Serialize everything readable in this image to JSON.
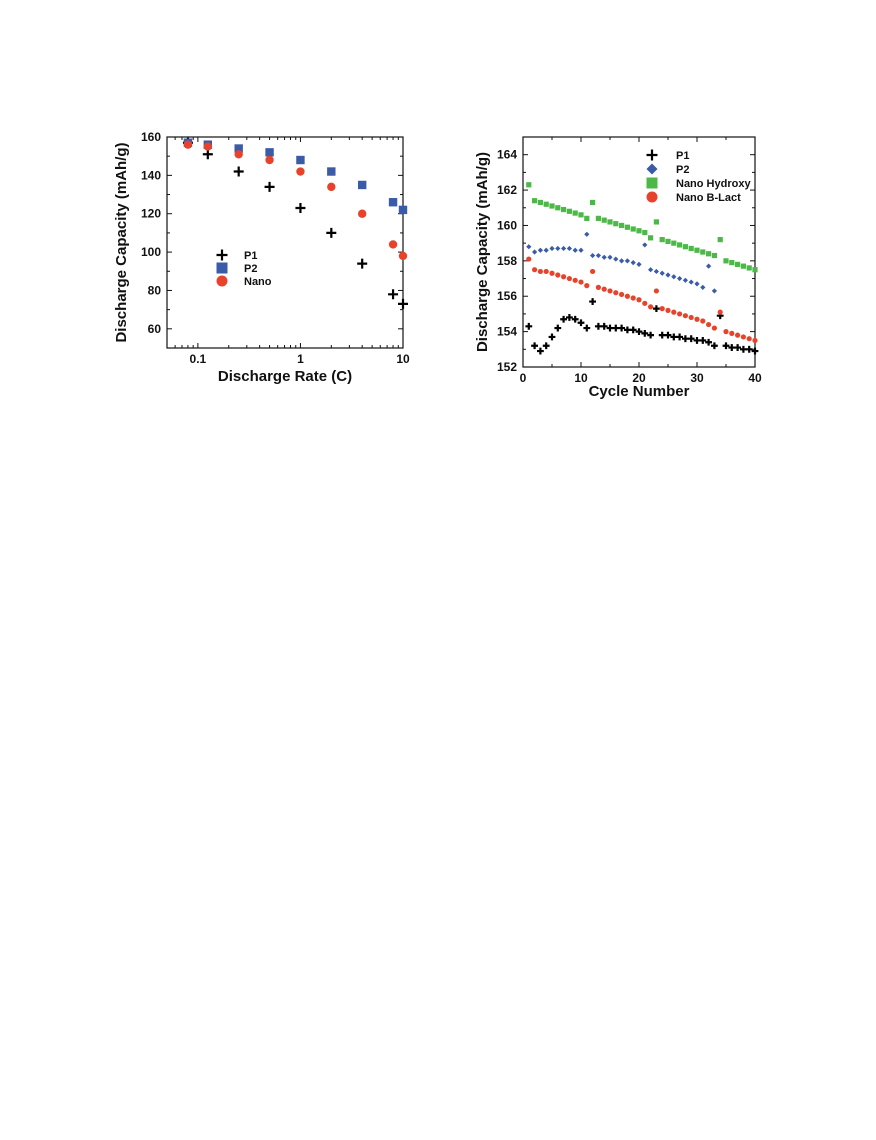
{
  "chart_data": [
    {
      "type": "scatter",
      "xlabel": "Discharge Rate (C)",
      "ylabel": "Discharge Capacity (mAh/g)",
      "x_scale": "log",
      "xlim": [
        0.05,
        10
      ],
      "ylim": [
        50,
        160
      ],
      "x_ticks": [
        0.1,
        1,
        10
      ],
      "x_tick_labels": [
        "0.1",
        "1",
        "10"
      ],
      "y_ticks": [
        60,
        80,
        100,
        120,
        140,
        160
      ],
      "legend_position": "left-center",
      "grid": false,
      "series": [
        {
          "name": "P1",
          "marker": "plus",
          "color": "#000000",
          "x": [
            0.08,
            0.125,
            0.25,
            0.5,
            1,
            2,
            4,
            8,
            10
          ],
          "y": [
            157,
            151,
            142,
            134,
            123,
            110,
            94,
            78,
            73
          ]
        },
        {
          "name": "P2",
          "marker": "square",
          "color": "#3a5ba8",
          "x": [
            0.08,
            0.125,
            0.25,
            0.5,
            1,
            2,
            4,
            8,
            10
          ],
          "y": [
            157,
            156,
            154,
            152,
            148,
            142,
            135,
            126,
            122
          ]
        },
        {
          "name": "Nano",
          "marker": "circle",
          "color": "#e8432a",
          "x": [
            0.08,
            0.125,
            0.25,
            0.5,
            1,
            2,
            4,
            8,
            10
          ],
          "y": [
            156,
            155,
            151,
            148,
            142,
            134,
            120,
            104,
            98
          ]
        }
      ]
    },
    {
      "type": "scatter",
      "xlabel": "Cycle Number",
      "ylabel": "Discharge Capacity (mAh/g)",
      "xlim": [
        0,
        40
      ],
      "ylim": [
        152,
        165
      ],
      "x_ticks": [
        0,
        10,
        20,
        30,
        40
      ],
      "y_ticks": [
        152,
        154,
        156,
        158,
        160,
        162,
        164
      ],
      "legend_position": "top-center",
      "grid": false,
      "series": [
        {
          "name": "P1",
          "marker": "plus",
          "color": "#000000",
          "x": [
            1,
            2,
            3,
            4,
            5,
            6,
            7,
            8,
            9,
            10,
            11,
            12,
            13,
            14,
            15,
            16,
            17,
            18,
            19,
            20,
            21,
            22,
            23,
            24,
            25,
            26,
            27,
            28,
            29,
            30,
            31,
            32,
            33,
            34,
            35,
            36,
            37,
            38,
            39,
            40
          ],
          "y": [
            154.3,
            153.2,
            152.9,
            153.2,
            153.7,
            154.2,
            154.7,
            154.8,
            154.7,
            154.5,
            154.2,
            155.7,
            154.3,
            154.3,
            154.2,
            154.2,
            154.2,
            154.1,
            154.1,
            154.0,
            153.9,
            153.8,
            155.3,
            153.8,
            153.8,
            153.7,
            153.7,
            153.6,
            153.6,
            153.5,
            153.5,
            153.4,
            153.2,
            154.9,
            153.2,
            153.1,
            153.1,
            153.0,
            153.0,
            152.9
          ]
        },
        {
          "name": "P2",
          "marker": "diamond",
          "color": "#3a5ba8",
          "x": [
            1,
            2,
            3,
            4,
            5,
            6,
            7,
            8,
            9,
            10,
            11,
            12,
            13,
            14,
            15,
            16,
            17,
            18,
            19,
            20,
            21,
            22,
            23,
            24,
            25,
            26,
            27,
            28,
            29,
            30,
            31,
            32,
            33
          ],
          "y": [
            158.8,
            158.5,
            158.6,
            158.6,
            158.7,
            158.7,
            158.7,
            158.7,
            158.6,
            158.6,
            159.5,
            158.3,
            158.3,
            158.2,
            158.2,
            158.1,
            158.0,
            158.0,
            157.9,
            157.8,
            158.9,
            157.5,
            157.4,
            157.3,
            157.2,
            157.1,
            157.0,
            156.9,
            156.8,
            156.7,
            156.5,
            157.7,
            156.3
          ]
        },
        {
          "name": "Nano Hydroxy",
          "marker": "square",
          "color": "#4cb848",
          "x": [
            1,
            2,
            3,
            4,
            5,
            6,
            7,
            8,
            9,
            10,
            11,
            12,
            13,
            14,
            15,
            16,
            17,
            18,
            19,
            20,
            21,
            22,
            23,
            24,
            25,
            26,
            27,
            28,
            29,
            30,
            31,
            32,
            33,
            34,
            35,
            36,
            37,
            38,
            39,
            40
          ],
          "y": [
            162.3,
            161.4,
            161.3,
            161.2,
            161.1,
            161.0,
            160.9,
            160.8,
            160.7,
            160.6,
            160.4,
            161.3,
            160.4,
            160.3,
            160.2,
            160.1,
            160.0,
            159.9,
            159.8,
            159.7,
            159.6,
            159.3,
            160.2,
            159.2,
            159.1,
            159.0,
            158.9,
            158.8,
            158.7,
            158.6,
            158.5,
            158.4,
            158.3,
            159.2,
            158.0,
            157.9,
            157.8,
            157.7,
            157.6,
            157.5
          ]
        },
        {
          "name": "Nano B-Lact",
          "marker": "circle",
          "color": "#e8432a",
          "x": [
            1,
            2,
            3,
            4,
            5,
            6,
            7,
            8,
            9,
            10,
            11,
            12,
            13,
            14,
            15,
            16,
            17,
            18,
            19,
            20,
            21,
            22,
            23,
            24,
            25,
            26,
            27,
            28,
            29,
            30,
            31,
            32,
            33,
            34,
            35,
            36,
            37,
            38,
            39,
            40
          ],
          "y": [
            158.1,
            157.5,
            157.4,
            157.4,
            157.3,
            157.2,
            157.1,
            157.0,
            156.9,
            156.8,
            156.6,
            157.4,
            156.5,
            156.4,
            156.3,
            156.2,
            156.1,
            156.0,
            155.9,
            155.8,
            155.6,
            155.4,
            156.3,
            155.3,
            155.2,
            155.1,
            155.0,
            154.9,
            154.8,
            154.7,
            154.6,
            154.4,
            154.2,
            155.1,
            154.0,
            153.9,
            153.8,
            153.7,
            153.6,
            153.5
          ]
        }
      ]
    }
  ]
}
